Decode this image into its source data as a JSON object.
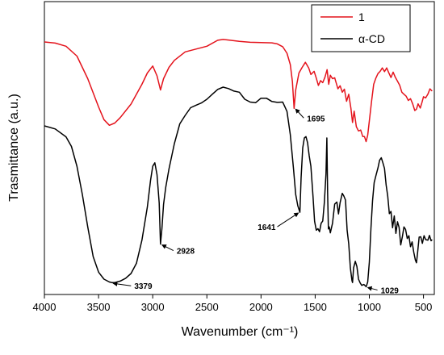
{
  "chart_data": {
    "type": "line",
    "xlabel": "Wavenumber (cm⁻¹)",
    "ylabel": "Trasmittance (a.u.)",
    "xlim": [
      4000,
      400
    ],
    "x_ticks": [
      "4000",
      "3500",
      "3000",
      "2500",
      "2000",
      "1500",
      "1000",
      "500"
    ],
    "x_tick_values": [
      4000,
      3500,
      3000,
      2500,
      2000,
      1500,
      1000,
      500
    ],
    "ylim": [
      0,
      100
    ],
    "grid": false,
    "legend_position": "top-right",
    "y_tick_labels": false,
    "series": [
      {
        "name": "1",
        "color": "#e4131c",
        "points": [
          [
            4000,
            88
          ],
          [
            3900,
            87.6
          ],
          [
            3800,
            86.5
          ],
          [
            3700,
            83
          ],
          [
            3600,
            75
          ],
          [
            3500,
            65
          ],
          [
            3450,
            60.5
          ],
          [
            3400,
            58.5
          ],
          [
            3350,
            59.3
          ],
          [
            3300,
            61.2
          ],
          [
            3200,
            66
          ],
          [
            3100,
            73
          ],
          [
            3050,
            77
          ],
          [
            3000,
            79.5
          ],
          [
            2960,
            76
          ],
          [
            2928,
            71
          ],
          [
            2900,
            75
          ],
          [
            2850,
            79
          ],
          [
            2800,
            81.5
          ],
          [
            2700,
            84.5
          ],
          [
            2600,
            85.5
          ],
          [
            2500,
            86.5
          ],
          [
            2400,
            88.6
          ],
          [
            2350,
            88.9
          ],
          [
            2300,
            88.7
          ],
          [
            2200,
            88.2
          ],
          [
            2100,
            87.9
          ],
          [
            2000,
            87.8
          ],
          [
            1900,
            87.7
          ],
          [
            1850,
            87.3
          ],
          [
            1800,
            86.3
          ],
          [
            1760,
            84
          ],
          [
            1730,
            80
          ],
          [
            1710,
            74
          ],
          [
            1695,
            64.5
          ],
          [
            1680,
            71
          ],
          [
            1650,
            77
          ],
          [
            1620,
            79
          ],
          [
            1590,
            80.8
          ],
          [
            1560,
            78.8
          ],
          [
            1540,
            76.5
          ],
          [
            1510,
            77.6
          ],
          [
            1490,
            75.2
          ],
          [
            1470,
            72.6
          ],
          [
            1450,
            74.3
          ],
          [
            1430,
            73.6
          ],
          [
            1410,
            75.5
          ],
          [
            1390,
            78.2
          ],
          [
            1375,
            73
          ],
          [
            1360,
            76.2
          ],
          [
            1340,
            75
          ],
          [
            1320,
            75.3
          ],
          [
            1290,
            71.4
          ],
          [
            1270,
            72.5
          ],
          [
            1250,
            70.2
          ],
          [
            1230,
            71.3
          ],
          [
            1210,
            67
          ],
          [
            1190,
            69.5
          ],
          [
            1170,
            64.5
          ],
          [
            1155,
            59.5
          ],
          [
            1140,
            63.5
          ],
          [
            1120,
            58
          ],
          [
            1100,
            56.5
          ],
          [
            1080,
            56.8
          ],
          [
            1060,
            54.5
          ],
          [
            1045,
            54.5
          ],
          [
            1030,
            52.7
          ],
          [
            1015,
            55
          ],
          [
            1000,
            60
          ],
          [
            980,
            66.8
          ],
          [
            960,
            73
          ],
          [
            940,
            75.2
          ],
          [
            920,
            76.8
          ],
          [
            900,
            77.6
          ],
          [
            880,
            78.8
          ],
          [
            860,
            77.5
          ],
          [
            840,
            78.8
          ],
          [
            820,
            77.1
          ],
          [
            800,
            75.4
          ],
          [
            780,
            77.3
          ],
          [
            760,
            75.5
          ],
          [
            740,
            74.1
          ],
          [
            720,
            72.7
          ],
          [
            700,
            70.2
          ],
          [
            680,
            69.5
          ],
          [
            660,
            68.8
          ],
          [
            640,
            67.3
          ],
          [
            620,
            67.9
          ],
          [
            600,
            66.1
          ],
          [
            580,
            63.7
          ],
          [
            565,
            64.2
          ],
          [
            550,
            66.1
          ],
          [
            530,
            64.6
          ],
          [
            515,
            66.5
          ],
          [
            500,
            68.6
          ],
          [
            480,
            68.2
          ],
          [
            460,
            69.5
          ],
          [
            440,
            71.4
          ],
          [
            420,
            70.6
          ]
        ]
      },
      {
        "name": "α-CD",
        "color": "#000000",
        "points": [
          [
            4000,
            58.3
          ],
          [
            3900,
            57.2
          ],
          [
            3800,
            54.4
          ],
          [
            3750,
            51
          ],
          [
            3700,
            44
          ],
          [
            3650,
            34
          ],
          [
            3600,
            22.5
          ],
          [
            3550,
            12
          ],
          [
            3500,
            6.5
          ],
          [
            3450,
            4
          ],
          [
            3400,
            3
          ],
          [
            3379,
            2.8
          ],
          [
            3350,
            2.8
          ],
          [
            3300,
            3.3
          ],
          [
            3250,
            4.3
          ],
          [
            3200,
            6
          ],
          [
            3150,
            9.6
          ],
          [
            3100,
            17.8
          ],
          [
            3050,
            29.5
          ],
          [
            3020,
            39
          ],
          [
            3000,
            44
          ],
          [
            2980,
            45.2
          ],
          [
            2960,
            41
          ],
          [
            2940,
            31
          ],
          [
            2928,
            16.4
          ],
          [
            2915,
            22
          ],
          [
            2900,
            30.5
          ],
          [
            2880,
            36.5
          ],
          [
            2850,
            43
          ],
          [
            2800,
            52
          ],
          [
            2750,
            59
          ],
          [
            2700,
            62
          ],
          [
            2650,
            64.7
          ],
          [
            2600,
            65.6
          ],
          [
            2550,
            66.4
          ],
          [
            2500,
            67.7
          ],
          [
            2450,
            69.5
          ],
          [
            2400,
            71.2
          ],
          [
            2350,
            72
          ],
          [
            2300,
            71.5
          ],
          [
            2250,
            70.6
          ],
          [
            2200,
            70.2
          ],
          [
            2150,
            67.7
          ],
          [
            2100,
            66.7
          ],
          [
            2050,
            66.5
          ],
          [
            2000,
            68.1
          ],
          [
            1950,
            68.1
          ],
          [
            1900,
            66.9
          ],
          [
            1850,
            66.6
          ],
          [
            1800,
            66.7
          ],
          [
            1760,
            63.4
          ],
          [
            1730,
            55.2
          ],
          [
            1700,
            43
          ],
          [
            1680,
            34
          ],
          [
            1660,
            30
          ],
          [
            1641,
            27.7
          ],
          [
            1630,
            40
          ],
          [
            1615,
            50.5
          ],
          [
            1600,
            54
          ],
          [
            1585,
            54.5
          ],
          [
            1570,
            52.3
          ],
          [
            1555,
            47.7
          ],
          [
            1540,
            44
          ],
          [
            1520,
            33.5
          ],
          [
            1505,
            24.5
          ],
          [
            1490,
            21.3
          ],
          [
            1475,
            21.9
          ],
          [
            1460,
            20.8
          ],
          [
            1445,
            23.8
          ],
          [
            1430,
            24.6
          ],
          [
            1415,
            31.2
          ],
          [
            1400,
            41.3
          ],
          [
            1392,
            54
          ],
          [
            1385,
            35
          ],
          [
            1378,
            21.8
          ],
          [
            1370,
            22.5
          ],
          [
            1360,
            20.4
          ],
          [
            1340,
            23.8
          ],
          [
            1320,
            30.6
          ],
          [
            1300,
            31.3
          ],
          [
            1285,
            27.1
          ],
          [
            1270,
            31.1
          ],
          [
            1250,
            34.4
          ],
          [
            1235,
            33.4
          ],
          [
            1220,
            32
          ],
          [
            1205,
            21.3
          ],
          [
            1190,
            16.5
          ],
          [
            1175,
            8
          ],
          [
            1160,
            3.5
          ],
          [
            1155,
            2.8
          ],
          [
            1145,
            8
          ],
          [
            1130,
            10.3
          ],
          [
            1115,
            8.5
          ],
          [
            1100,
            4
          ],
          [
            1085,
            2.7
          ],
          [
            1070,
            1.8
          ],
          [
            1050,
            2.1
          ],
          [
            1029,
            1.3
          ],
          [
            1015,
            3
          ],
          [
            1000,
            10
          ],
          [
            985,
            22
          ],
          [
            970,
            31.8
          ],
          [
            955,
            38.2
          ],
          [
            940,
            40.6
          ],
          [
            920,
            43.4
          ],
          [
            905,
            46.1
          ],
          [
            890,
            47
          ],
          [
            875,
            45.2
          ],
          [
            860,
            43.2
          ],
          [
            845,
            37.4
          ],
          [
            830,
            33.4
          ],
          [
            815,
            27.2
          ],
          [
            800,
            28
          ],
          [
            785,
            22.2
          ],
          [
            770,
            26.4
          ],
          [
            755,
            20.2
          ],
          [
            740,
            24.3
          ],
          [
            725,
            22.3
          ],
          [
            710,
            16.1
          ],
          [
            695,
            19
          ],
          [
            680,
            22.5
          ],
          [
            665,
            21.6
          ],
          [
            650,
            18.4
          ],
          [
            635,
            19.4
          ],
          [
            620,
            15.5
          ],
          [
            605,
            17.2
          ],
          [
            590,
            13.6
          ],
          [
            575,
            10.8
          ],
          [
            565,
            9.8
          ],
          [
            555,
            13.1
          ],
          [
            540,
            18.9
          ],
          [
            525,
            19
          ],
          [
            510,
            16.7
          ],
          [
            495,
            19.4
          ],
          [
            480,
            18
          ],
          [
            460,
            17.8
          ],
          [
            445,
            19.5
          ],
          [
            430,
            17.6
          ],
          [
            420,
            18
          ]
        ]
      }
    ],
    "annotations": [
      {
        "label": "1695",
        "series": "1",
        "x": 1695
      },
      {
        "label": "1641",
        "series": "α-CD",
        "x": 1641
      },
      {
        "label": "2928",
        "series": "α-CD",
        "x": 2928
      },
      {
        "label": "3379",
        "series": "α-CD",
        "x": 3379
      },
      {
        "label": "1029",
        "series": "α-CD",
        "x": 1029
      }
    ]
  }
}
